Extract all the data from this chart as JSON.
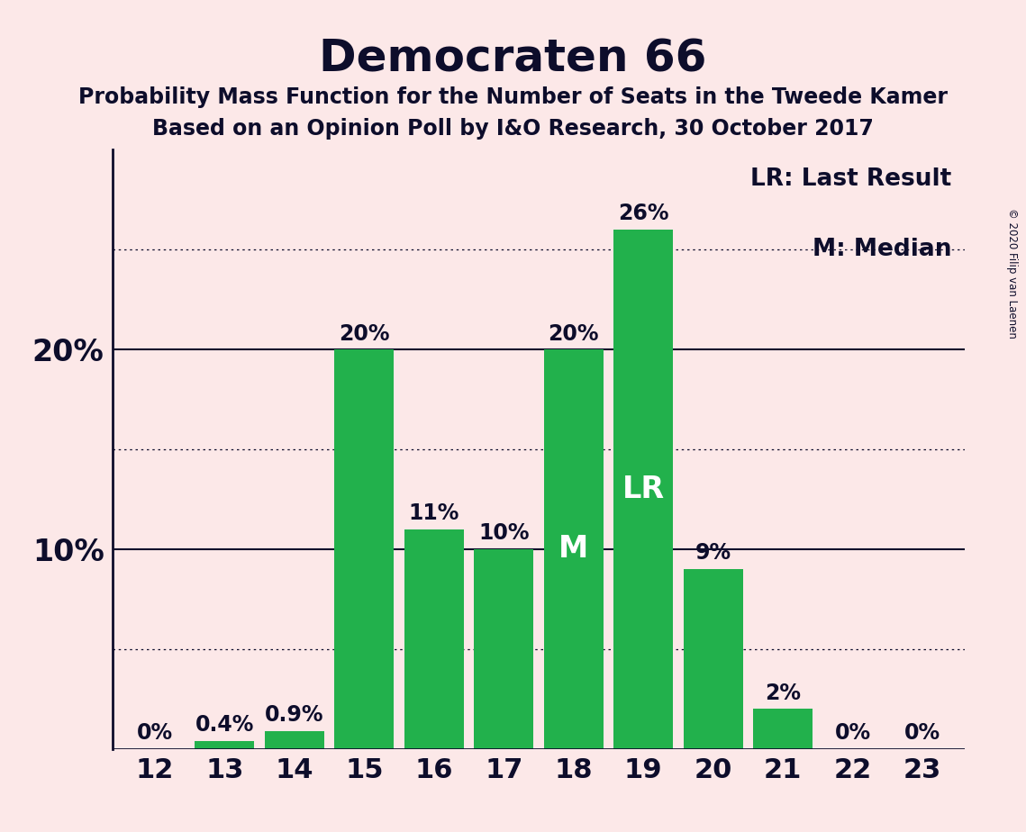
{
  "title": "Democraten 66",
  "subtitle1": "Probability Mass Function for the Number of Seats in the Tweede Kamer",
  "subtitle2": "Based on an Opinion Poll by I&O Research, 30 October 2017",
  "copyright": "© 2020 Filip van Laenen",
  "categories": [
    12,
    13,
    14,
    15,
    16,
    17,
    18,
    19,
    20,
    21,
    22,
    23
  ],
  "values": [
    0.0,
    0.4,
    0.9,
    20.0,
    11.0,
    10.0,
    20.0,
    26.0,
    9.0,
    2.0,
    0.0,
    0.0
  ],
  "bar_color": "#22b14c",
  "background_color": "#fce8e8",
  "text_color": "#0d0d2b",
  "legend_lr": "LR: Last Result",
  "legend_m": "M: Median",
  "lr_seat": 19,
  "median_seat": 18,
  "ylim": [
    0,
    30
  ],
  "dotted_lines": [
    5,
    15,
    25
  ],
  "solid_lines": [
    10,
    20
  ],
  "bar_labels": {
    "12": "0%",
    "13": "0.4%",
    "14": "0.9%",
    "15": "20%",
    "16": "11%",
    "17": "10%",
    "18": "20%",
    "19": "26%",
    "20": "9%",
    "21": "2%",
    "22": "0%",
    "23": "0%"
  }
}
